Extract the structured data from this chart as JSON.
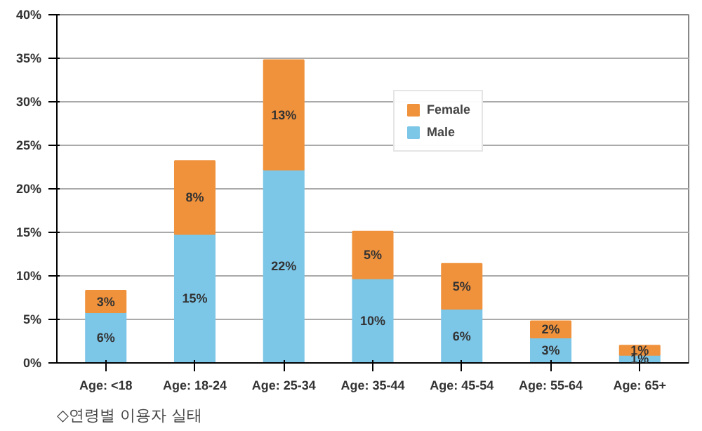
{
  "chart_data": {
    "type": "bar",
    "stacked": true,
    "categories": [
      "Age: <18",
      "Age: 18-24",
      "Age: 25-34",
      "Age: 35-44",
      "Age: 45-54",
      "Age: 55-64",
      "Age: 65+"
    ],
    "series": [
      {
        "name": "Male",
        "color": "#7cc6e8",
        "values": [
          5.8,
          14.8,
          22.2,
          9.7,
          6.2,
          2.9,
          0.9
        ],
        "value_labels": [
          "6%",
          "15%",
          "22%",
          "10%",
          "6%",
          "3%",
          "1%"
        ]
      },
      {
        "name": "Female",
        "color": "#f0923c",
        "values": [
          2.5,
          8.4,
          12.6,
          5.4,
          5.2,
          1.9,
          1.1
        ],
        "value_labels": [
          "3%",
          "8%",
          "13%",
          "5%",
          "5%",
          "2%",
          "1%"
        ]
      }
    ],
    "ylim": [
      0,
      40
    ],
    "yticks": [
      {
        "value": 0,
        "label": "0%"
      },
      {
        "value": 5,
        "label": "5%"
      },
      {
        "value": 10,
        "label": "10%"
      },
      {
        "value": 15,
        "label": "15%"
      },
      {
        "value": 20,
        "label": "20%"
      },
      {
        "value": 25,
        "label": "25%"
      },
      {
        "value": 30,
        "label": "30%"
      },
      {
        "value": 35,
        "label": "35%"
      },
      {
        "value": 40,
        "label": "40%"
      }
    ],
    "grid": "y",
    "legend": "top right",
    "annotations": [
      "◇연령별 이용자 실태"
    ]
  }
}
